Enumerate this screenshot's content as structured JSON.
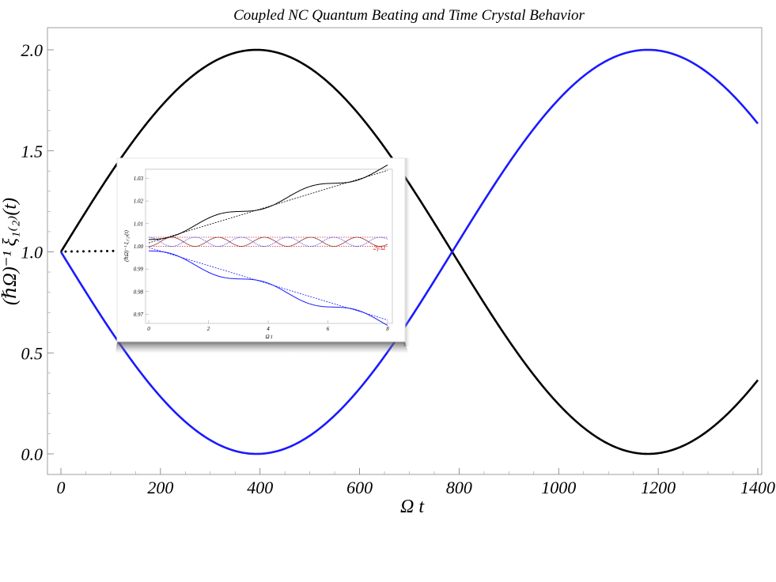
{
  "chart_data": {
    "type": "line",
    "title": "Coupled NC Quantum Beating and Time Crystal Behavior",
    "xlabel": "Ω t",
    "ylabel": "(ℏΩ)⁻¹ ξ₁₍₂₎(t)",
    "xlim": [
      -20,
      1410
    ],
    "ylim": [
      -0.1,
      2.1
    ],
    "xticks": [
      0,
      200,
      400,
      600,
      800,
      1000,
      1200,
      1400
    ],
    "yticks": [
      0.0,
      0.5,
      1.0,
      1.5,
      2.0
    ],
    "xtick_labels": [
      "0",
      "200",
      "400",
      "600",
      "800",
      "1000",
      "1200",
      "1400"
    ],
    "ytick_labels": [
      "0.0",
      "0.5",
      "1.0",
      "1.5",
      "2.0"
    ],
    "grid": false,
    "legend": "none",
    "beat_period": 1572,
    "series": [
      {
        "color": "#000000",
        "x": [
          0,
          50,
          100,
          150,
          200,
          250,
          300,
          350,
          393,
          450,
          500,
          550,
          600,
          650,
          700,
          750,
          786,
          850,
          900,
          950,
          1000,
          1050,
          1100,
          1150,
          1179,
          1250,
          1300,
          1350,
          1400
        ],
        "values": [
          1.0,
          1.2,
          1.39,
          1.56,
          1.71,
          1.84,
          1.93,
          1.99,
          2.0,
          1.98,
          1.92,
          1.82,
          1.69,
          1.54,
          1.36,
          1.18,
          1.0,
          0.69,
          0.48,
          0.3,
          0.16,
          0.06,
          0.01,
          0.0,
          0.0,
          0.04,
          0.11,
          0.22,
          0.36
        ]
      },
      {
        "color": "#1a1aff",
        "x": [
          0,
          50,
          100,
          150,
          200,
          250,
          300,
          350,
          393,
          450,
          500,
          550,
          600,
          650,
          700,
          750,
          786,
          850,
          900,
          950,
          1000,
          1050,
          1100,
          1150,
          1179,
          1250,
          1300,
          1350,
          1400
        ],
        "values": [
          1.0,
          0.8,
          0.61,
          0.44,
          0.29,
          0.16,
          0.07,
          0.01,
          0.0,
          0.02,
          0.08,
          0.18,
          0.31,
          0.46,
          0.64,
          0.82,
          1.0,
          1.31,
          1.52,
          1.7,
          1.84,
          1.94,
          1.99,
          2.0,
          2.0,
          1.96,
          1.89,
          1.78,
          1.64
        ]
      }
    ],
    "inset": {
      "xlabel": "Ω t",
      "ylabel": "(ℏΩ)⁻¹ ξ₁₍₂₎(t)",
      "xlim": [
        0,
        8
      ],
      "ylim": [
        0.966,
        1.034
      ],
      "xticks": [
        0,
        2,
        4,
        6,
        8
      ],
      "yticks": [
        0.97,
        0.98,
        0.99,
        1.0,
        1.01,
        1.02,
        1.03
      ],
      "xtick_labels": [
        "0",
        "2",
        "4",
        "6",
        "8"
      ],
      "ytick_labels": [
        "0.97",
        "0.98",
        "0.99",
        "1.00",
        "1.01",
        "1.02",
        "1.03"
      ],
      "annotation": "2γ/Ω",
      "colors": {
        "black": "#000000",
        "blue": "#1a1aff",
        "red": "#d42a2a"
      },
      "band": [
        1.0,
        1.004
      ],
      "trend_slope": 0.004,
      "oscillation_amplitude": 0.002,
      "oscillation_period": 3.1
    }
  }
}
